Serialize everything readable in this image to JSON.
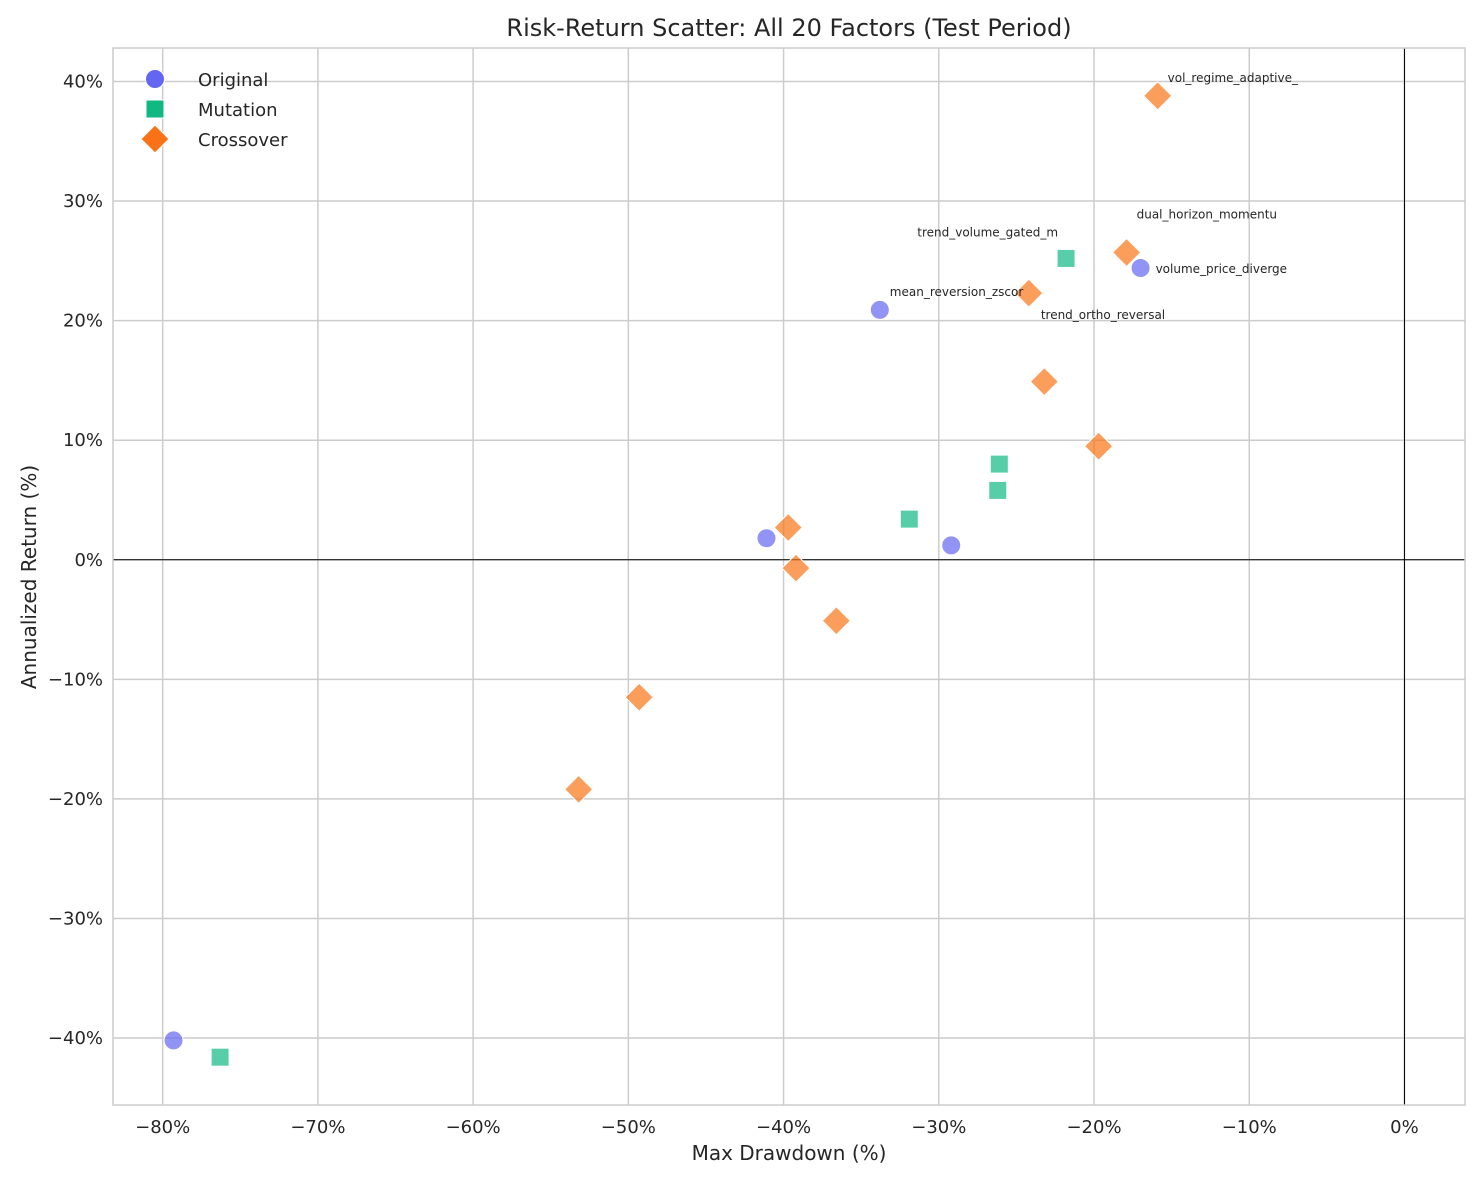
{
  "chart_data": {
    "type": "scatter",
    "title": "Risk-Return Scatter: All 20 Factors (Test Period)",
    "xlabel": "Max Drawdown (%)",
    "ylabel": "Annualized Return (%)",
    "xlim": [
      -83.2,
      3.9
    ],
    "ylim": [
      -45.6,
      42.8
    ],
    "xticks": [
      -80,
      -70,
      -60,
      -50,
      -40,
      -30,
      -20,
      -10,
      0
    ],
    "yticks": [
      -40,
      -30,
      -20,
      -10,
      0,
      10,
      20,
      30,
      40
    ],
    "xtick_labels": [
      "−80%",
      "−70%",
      "−60%",
      "−50%",
      "−40%",
      "−30%",
      "−20%",
      "−10%",
      "0%"
    ],
    "ytick_labels": [
      "−40%",
      "−30%",
      "−20%",
      "−10%",
      "0%",
      "10%",
      "20%",
      "30%",
      "40%"
    ],
    "grid": true,
    "reference_lines": {
      "x": 0,
      "y": 0
    },
    "legend_position": "top-left",
    "series": [
      {
        "name": "Original",
        "marker": "circle",
        "color": "#6366f1",
        "points": [
          {
            "x": -33.8,
            "y": 20.9,
            "label": "mean_reversion_zscor"
          },
          {
            "x": -17.0,
            "y": 24.4,
            "label": "volume_price_diverge"
          },
          {
            "x": -41.1,
            "y": 1.8
          },
          {
            "x": -29.2,
            "y": 1.2
          },
          {
            "x": -79.3,
            "y": -40.2
          }
        ]
      },
      {
        "name": "Mutation",
        "marker": "square",
        "color": "#10b981",
        "points": [
          {
            "x": -21.8,
            "y": 25.2,
            "label": "trend_volume_gated_m"
          },
          {
            "x": -26.1,
            "y": 8.0
          },
          {
            "x": -26.2,
            "y": 5.8
          },
          {
            "x": -31.9,
            "y": 3.4
          },
          {
            "x": -76.3,
            "y": -41.6
          }
        ]
      },
      {
        "name": "Crossover",
        "marker": "diamond",
        "color": "#f97316",
        "points": [
          {
            "x": -15.9,
            "y": 38.8,
            "label": "vol_regime_adaptive_"
          },
          {
            "x": -17.9,
            "y": 25.7,
            "label": "dual_horizon_momentu"
          },
          {
            "x": -24.2,
            "y": 22.3,
            "label": "trend_ortho_reversal"
          },
          {
            "x": -23.2,
            "y": 14.9
          },
          {
            "x": -19.7,
            "y": 9.5
          },
          {
            "x": -39.7,
            "y": 2.7
          },
          {
            "x": -39.2,
            "y": -0.7
          },
          {
            "x": -36.6,
            "y": -5.1
          },
          {
            "x": -49.3,
            "y": -11.5
          },
          {
            "x": -53.2,
            "y": -19.2
          }
        ]
      }
    ]
  }
}
